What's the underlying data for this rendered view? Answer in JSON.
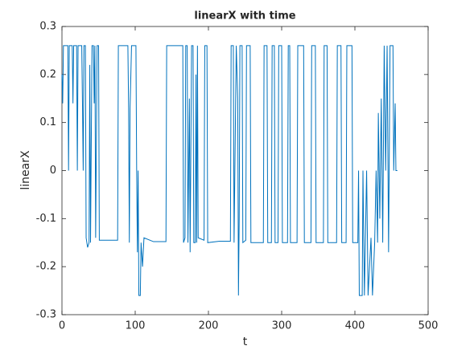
{
  "chart_data": {
    "type": "line",
    "title": "linearX with time",
    "x_label": "t",
    "y_label": "linearX",
    "x": [
      0,
      1,
      2,
      8,
      9,
      10,
      14,
      15,
      16,
      20,
      21,
      22,
      27,
      28,
      29,
      30,
      32,
      33,
      35,
      37,
      38,
      39,
      41,
      43,
      44,
      45,
      46,
      48,
      50,
      51,
      76,
      77,
      90,
      91,
      92,
      93,
      95,
      101,
      102,
      103,
      104,
      105,
      107,
      108,
      110,
      112,
      125,
      142,
      143,
      165,
      166,
      168,
      169,
      171,
      172,
      174,
      175,
      177,
      179,
      180,
      182,
      183,
      184,
      185,
      186,
      194,
      195,
      198,
      199,
      215,
      230,
      231,
      234,
      235,
      238,
      240,
      241,
      242,
      243,
      246,
      247,
      251,
      252,
      257,
      258,
      275,
      276,
      280,
      281,
      286,
      287,
      290,
      291,
      295,
      296,
      300,
      301,
      308,
      309,
      311,
      312,
      321,
      322,
      330,
      331,
      340,
      341,
      346,
      347,
      357,
      358,
      362,
      363,
      375,
      376,
      381,
      382,
      388,
      389,
      396,
      397,
      404,
      405,
      406,
      410,
      411,
      413,
      416,
      418,
      422,
      424,
      427,
      429,
      431,
      432,
      434,
      436,
      438,
      440,
      442,
      444,
      446,
      448,
      452,
      453,
      455,
      456,
      458
    ],
    "values": [
      0.2,
      0.14,
      0.26,
      0.26,
      0,
      0.26,
      0.26,
      0.14,
      0.26,
      0.26,
      0,
      0.26,
      0.26,
      0.14,
      0,
      0.26,
      0.26,
      -0.14,
      -0.16,
      -0.15,
      0.22,
      -0.15,
      0.26,
      0.26,
      0.14,
      0.26,
      -0.14,
      0.26,
      0.26,
      -0.145,
      -0.145,
      0.26,
      0.26,
      0.13,
      -0.15,
      0.13,
      0.26,
      0.26,
      0,
      -0.17,
      0,
      -0.26,
      -0.26,
      -0.15,
      -0.2,
      -0.14,
      -0.148,
      -0.148,
      0.26,
      0.26,
      -0.15,
      -0.14,
      0.26,
      0.26,
      -0.15,
      0.15,
      -0.17,
      0.26,
      0.26,
      -0.15,
      -0.15,
      0.2,
      -0.15,
      0.26,
      -0.14,
      -0.145,
      0.26,
      0.26,
      -0.15,
      -0.147,
      -0.147,
      0.26,
      0.26,
      -0.15,
      0.26,
      0.15,
      -0.26,
      -0.1,
      0.26,
      0.26,
      -0.15,
      -0.145,
      0.26,
      0.26,
      -0.15,
      -0.15,
      0.26,
      0.26,
      -0.15,
      -0.15,
      0.26,
      0.26,
      -0.15,
      -0.15,
      0.26,
      0.26,
      -0.15,
      -0.15,
      0.26,
      0.26,
      -0.15,
      -0.15,
      0.26,
      0.26,
      -0.15,
      -0.15,
      0.26,
      0.26,
      -0.15,
      -0.15,
      0.26,
      0.26,
      -0.15,
      -0.15,
      0.26,
      0.26,
      -0.15,
      -0.15,
      0.26,
      0.26,
      -0.15,
      -0.15,
      0,
      -0.26,
      -0.26,
      0,
      -0.26,
      0,
      -0.26,
      -0.14,
      -0.26,
      -0.15,
      0,
      -0.15,
      0.12,
      -0.1,
      0.15,
      -0.15,
      0.26,
      0,
      0.26,
      -0.17,
      0.26,
      0.26,
      0,
      0.14,
      0,
      0
    ],
    "color": "#0072bd",
    "xlim": [
      0,
      500
    ],
    "xticks": [
      0,
      100,
      200,
      300,
      400,
      500
    ],
    "ylim": [
      -0.3,
      0.3
    ],
    "yticks": [
      -0.3,
      -0.2,
      -0.1,
      0,
      0.1,
      0.2,
      0.3
    ],
    "grid": false
  }
}
